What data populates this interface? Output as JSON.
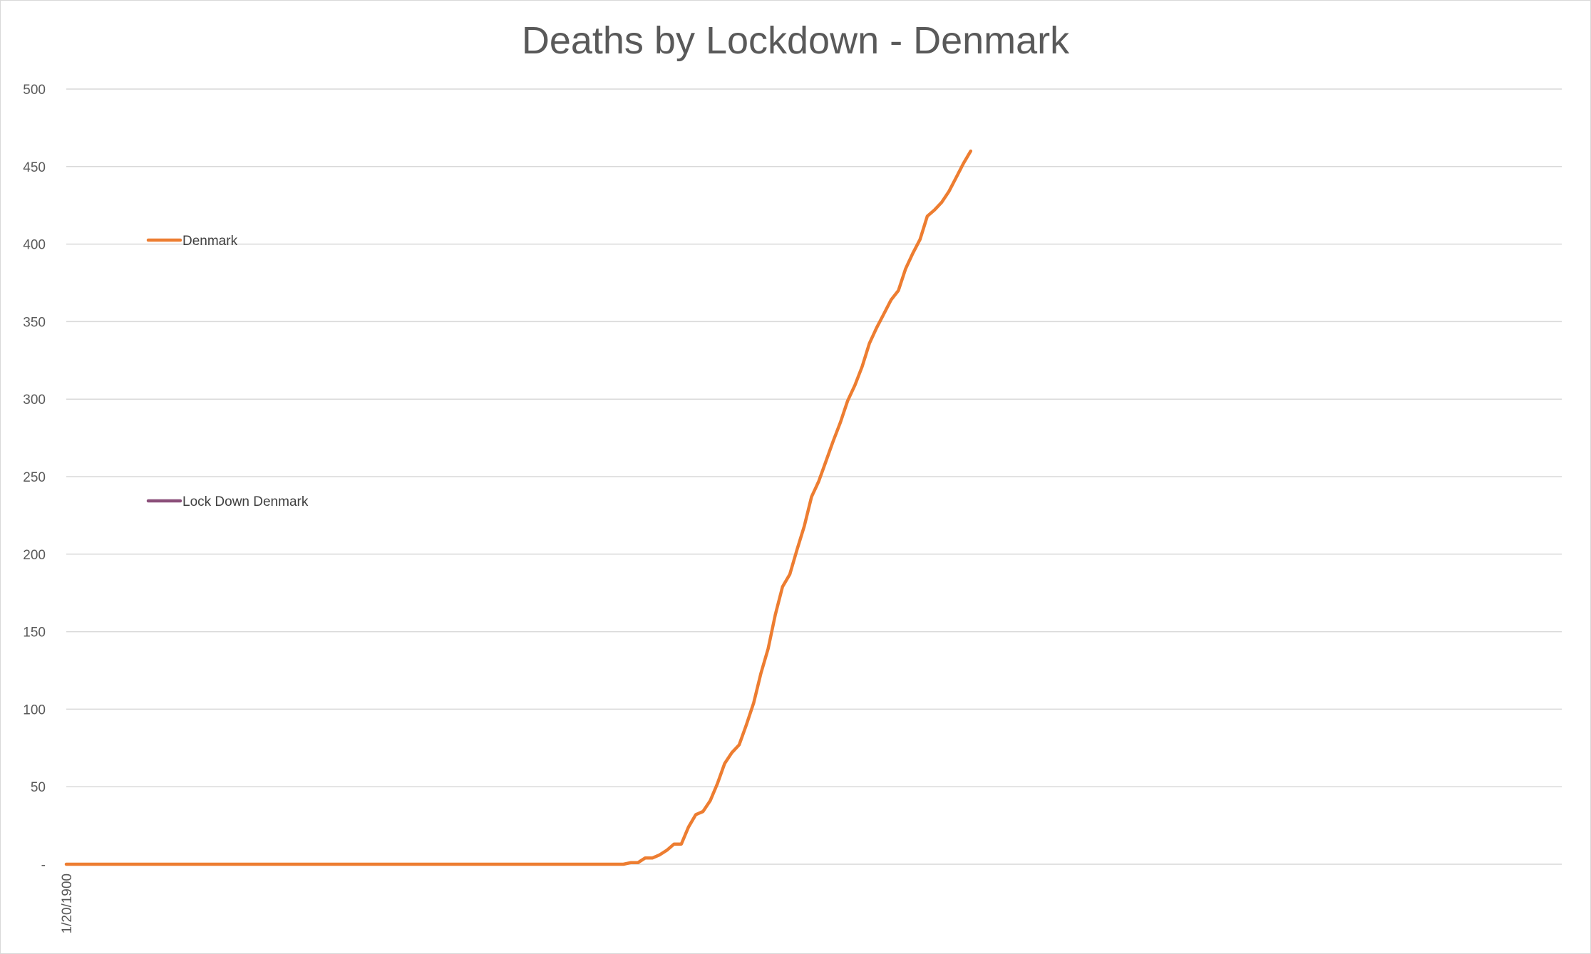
{
  "chart_data": {
    "type": "line",
    "title": "Deaths by Lockdown - Denmark",
    "xlabel": "",
    "ylabel": "",
    "ylim": [
      0,
      500
    ],
    "y_ticks": [
      {
        "value": 0,
        "label": "-"
      },
      {
        "value": 50,
        "label": "50"
      },
      {
        "value": 100,
        "label": "100"
      },
      {
        "value": 150,
        "label": "150"
      },
      {
        "value": 200,
        "label": "200"
      },
      {
        "value": 250,
        "label": "250"
      },
      {
        "value": 300,
        "label": "300"
      },
      {
        "value": 350,
        "label": "350"
      },
      {
        "value": 400,
        "label": "400"
      },
      {
        "value": 450,
        "label": "450"
      },
      {
        "value": 500,
        "label": "500"
      }
    ],
    "x_tick_labels": [
      {
        "index": 0,
        "label": "1/20/1900"
      }
    ],
    "grid": true,
    "legend_position": "left",
    "series": [
      {
        "name": "Denmark",
        "color": "#ED7D31",
        "values": [
          0,
          0,
          0,
          0,
          0,
          0,
          0,
          0,
          0,
          0,
          0,
          0,
          0,
          0,
          0,
          0,
          0,
          0,
          0,
          0,
          0,
          0,
          0,
          0,
          0,
          0,
          0,
          0,
          0,
          0,
          0,
          0,
          0,
          0,
          0,
          0,
          0,
          0,
          0,
          0,
          0,
          0,
          0,
          0,
          0,
          0,
          0,
          0,
          0,
          0,
          0,
          0,
          0,
          0,
          0,
          0,
          0,
          0,
          0,
          0,
          0,
          0,
          0,
          0,
          0,
          0,
          0,
          0,
          0,
          0,
          0,
          0,
          0,
          0,
          0,
          0,
          0,
          0,
          1,
          1,
          4,
          4,
          6,
          9,
          13,
          13,
          24,
          32,
          34,
          41,
          52,
          65,
          72,
          77,
          90,
          104,
          123,
          139,
          161,
          179,
          187,
          203,
          218,
          237,
          247,
          260,
          273,
          285,
          299,
          309,
          321,
          336,
          346,
          355,
          364,
          370,
          384,
          394,
          403,
          418,
          422,
          427,
          434,
          443,
          452,
          460
        ]
      },
      {
        "name": "Lock Down Denmark",
        "color": "#8B4F7A",
        "values": []
      }
    ]
  }
}
